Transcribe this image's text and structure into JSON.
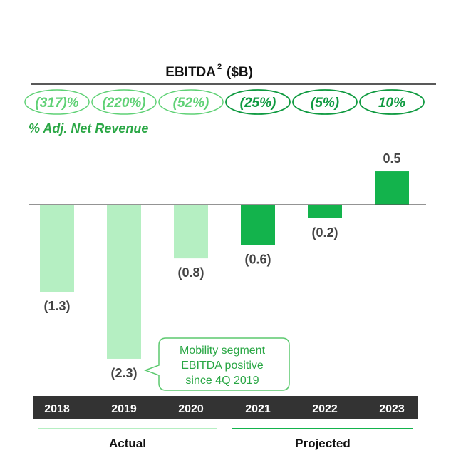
{
  "chart_data": {
    "type": "bar",
    "title": "EBITDA",
    "title_superscript": "2",
    "title_unit": "($B)",
    "categories": [
      "2018",
      "2019",
      "2020",
      "2021",
      "2022",
      "2023"
    ],
    "values": [
      -1.3,
      -2.3,
      -0.8,
      -0.6,
      -0.2,
      0.5
    ],
    "value_labels": [
      "(1.3)",
      "(2.3)",
      "(0.8)",
      "(0.6)",
      "(0.2)",
      "0.5"
    ],
    "status": [
      "actual",
      "actual",
      "actual",
      "projected",
      "projected",
      "projected"
    ],
    "pct_adj_net_revenue": [
      "(317)%",
      "(220%)",
      "(52%)",
      "(25%)",
      "(5%)",
      "10%"
    ],
    "pct_legend": "% Adj. Net Revenue",
    "groups": {
      "actual": "Actual",
      "projected": "Projected"
    },
    "callout_lines": [
      "Mobility segment",
      "EBITDA positive",
      "since 4Q 2019"
    ],
    "ylim": [
      -2.3,
      0.5
    ],
    "colors": {
      "actual": "#b5efc2",
      "projected": "#13b34c",
      "actual_text": "#5fd175",
      "projected_text": "#0f9a40",
      "year_band": "#333333",
      "callout_text": "#2aa745",
      "callout_border": "#5cc96f"
    }
  }
}
